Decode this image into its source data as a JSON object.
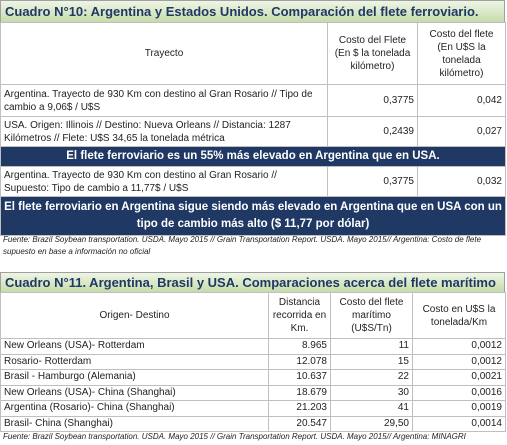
{
  "table1": {
    "title": "Cuadro N°10: Argentina y Estados Unidos. Comparación del flete ferroviario.",
    "header": [
      "Trayecto",
      "Costo del Flete (En $ la tonelada kilómetro)",
      "Costo del flete (En U$S la tonelada kilómetro)"
    ],
    "rows": [
      [
        "Argentina. Trayecto de 930 Km con destino al Gran Rosario // Tipo de cambio a 9,06$ / U$S",
        "0,3775",
        "0,042"
      ],
      [
        "USA. Origen: Illinois // Destino: Nueva Orleans // Distancia: 1287 Kilómetros // Flete: U$S 34,65 la tonelada métrica",
        "0,2439",
        "0,027"
      ]
    ],
    "banner1": "El flete ferroviario es un 55% más elevado en Argentina que en USA.",
    "rows2": [
      [
        "Argentina. Trayecto de 930 Km con destino al Gran Rosario // Supuesto: Tipo de cambio a 11,77$ / U$S",
        "0,3775",
        "0,032"
      ]
    ],
    "banner2": "El flete ferroviario en Argentina sigue siendo más elevado en Argentina que en USA con un tipo de cambio más alto ($ 11,77 por dólar)",
    "source": "Fuente: Brazil Soybean transportation. USDA. Mayo 2015 // Grain Transportation Report. USDA. Mayo 2015// Argentina: Costo de flete supuesto en base a información no oficial"
  },
  "table2": {
    "title": "Cuadro N°11. Argentina, Brasil y USA. Comparaciones acerca del flete marítimo",
    "header": [
      "Origen- Destino",
      "Distancia recorrida en Km.",
      "Costo del flete marítimo (U$S/Tn)",
      "Costo en U$S la tonelada/Km"
    ],
    "rows": [
      [
        "New Orleans (USA)- Rotterdam",
        "8.965",
        "11",
        "0,0012"
      ],
      [
        "Rosario- Rotterdam",
        "12.078",
        "15",
        "0,0012"
      ],
      [
        "Brasil - Hamburgo (Alemania)",
        "10.637",
        "22",
        "0,0021"
      ],
      [
        "New Orleans (USA)- China (Shanghai)",
        "18.679",
        "30",
        "0,0016"
      ],
      [
        "Argentina (Rosario)- China (Shanghai)",
        "21.203",
        "41",
        "0,0019"
      ],
      [
        "Brasil- China (Shanghai)",
        "20.547",
        "29,50",
        "0,0014"
      ]
    ],
    "source": "Fuente: Brazil Soybean transportation. USDA. Mayo 2015 // Grain Transportation Report. USDA. Mayo 2015// Argentina: MINAGRI"
  }
}
